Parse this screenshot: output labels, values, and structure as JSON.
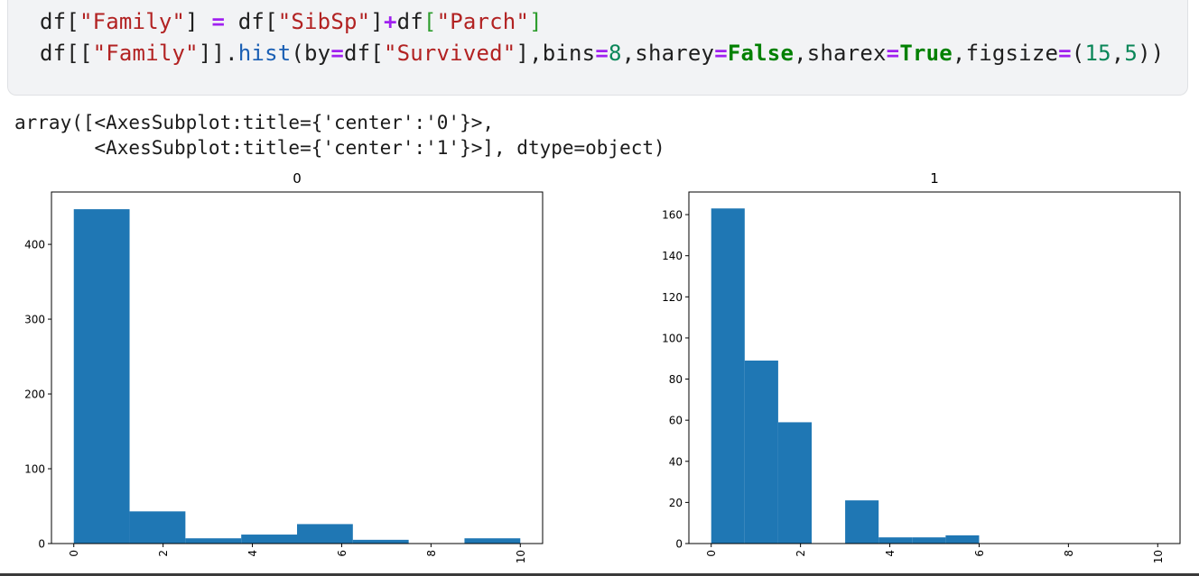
{
  "code": {
    "line1": {
      "t1": "df[",
      "t2": "\"Family\"",
      "t3": "] ",
      "t4": "=",
      "t5": " df[",
      "t6": "\"SibSp\"",
      "t7": "]",
      "t8": "+",
      "t9": "df",
      "t10": "[",
      "t11": "\"Parch\"",
      "t12": "]"
    },
    "line2": {
      "t1": "df[[",
      "t2": "\"Family\"",
      "t3": "]].",
      "t4": "hist",
      "t5": "(by",
      "t6": "=",
      "t7": "df[",
      "t8": "\"Survived\"",
      "t9": "],bins",
      "t10": "=",
      "t11": "8",
      "t12": ",sharey",
      "t13": "=",
      "t14": "False",
      "t15": ",sharex",
      "t16": "=",
      "t17": "True",
      "t18": ",figsize",
      "t19": "=",
      "t20": "(",
      "t21": "15",
      "t22": ",",
      "t23": "5",
      "t24": "))"
    }
  },
  "output": {
    "line1": "array([<AxesSubplot:title={'center':'0'}>,",
    "line2": "       <AxesSubplot:title={'center':'1'}>], dtype=object)"
  },
  "colors": {
    "bar": "#1f77b4",
    "string": "#b22222",
    "operator": "#a020f0",
    "keyword": "#008000",
    "number": "#098658"
  },
  "chart_data": [
    {
      "type": "bar",
      "title": "0",
      "bin_edges": [
        0,
        1.25,
        2.5,
        3.75,
        5,
        6.25,
        7.5,
        8.75,
        10
      ],
      "values": [
        447,
        43,
        7,
        12,
        26,
        5,
        0,
        7
      ],
      "xlim": [
        -0.5,
        10.5
      ],
      "ylim": [
        0,
        470
      ],
      "xticks": [
        0,
        2,
        4,
        6,
        8,
        10
      ],
      "xtick_labels": [
        "0",
        "2",
        "4",
        "6",
        "8",
        "10"
      ],
      "yticks": [
        0,
        100,
        200,
        300,
        400
      ],
      "ytick_labels": [
        "0",
        "100",
        "200",
        "300",
        "400"
      ],
      "grid": false
    },
    {
      "type": "bar",
      "title": "1",
      "bin_edges": [
        0,
        0.75,
        1.5,
        2.25,
        3,
        3.75,
        4.5,
        5.25,
        6
      ],
      "values": [
        163,
        89,
        59,
        0,
        21,
        3,
        3,
        4
      ],
      "xlim": [
        -0.5,
        10.5
      ],
      "ylim": [
        0,
        171
      ],
      "xticks": [
        0,
        2,
        4,
        6,
        8,
        10
      ],
      "xtick_labels": [
        "0",
        "2",
        "4",
        "6",
        "8",
        "10"
      ],
      "yticks": [
        0,
        20,
        40,
        60,
        80,
        100,
        120,
        140,
        160
      ],
      "ytick_labels": [
        "0",
        "20",
        "40",
        "60",
        "80",
        "100",
        "120",
        "140",
        "160"
      ],
      "grid": false
    }
  ]
}
